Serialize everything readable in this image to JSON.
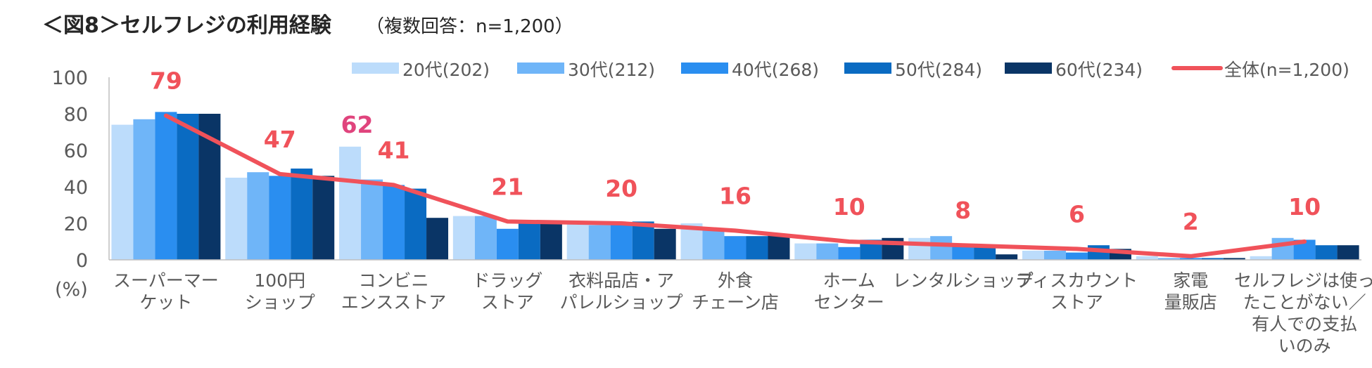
{
  "chart_data": {
    "type": "bar",
    "title": "＜図8＞セルフレジの利用経験",
    "subtitle": "（複数回答：n=1,200）",
    "ylabel": "(%)",
    "ylim": [
      0,
      100
    ],
    "yticks": [
      0,
      20,
      40,
      60,
      80,
      100
    ],
    "categories": [
      [
        "スーパーマー",
        "ケット"
      ],
      [
        "100円",
        "ショップ"
      ],
      [
        "コンビニ",
        "エンスストア"
      ],
      [
        "ドラッグ",
        "ストア"
      ],
      [
        "衣料品店・ア",
        "パレルショップ"
      ],
      [
        "外食",
        "チェーン店"
      ],
      [
        "ホーム",
        "センター"
      ],
      [
        "レンタルショップ"
      ],
      [
        "ディスカウント",
        "ストア"
      ],
      [
        "家電",
        "量販店"
      ],
      [
        "セルフレジは使っ",
        "たことがない／",
        "有人での支払",
        "いのみ"
      ]
    ],
    "series": [
      {
        "name": "20代(202)",
        "color": "#bcdcfb",
        "values": [
          74,
          45,
          62,
          24,
          20,
          20,
          9,
          12,
          5,
          2,
          2
        ]
      },
      {
        "name": "30代(212)",
        "color": "#6fb5f8",
        "values": [
          77,
          48,
          44,
          24,
          19,
          17,
          9,
          13,
          5,
          1,
          12
        ]
      },
      {
        "name": "40代(268)",
        "color": "#2a8ef0",
        "values": [
          81,
          46,
          41,
          17,
          20,
          13,
          7,
          8,
          4,
          1,
          11
        ]
      },
      {
        "name": "50代(284)",
        "color": "#0a6bc2",
        "values": [
          80,
          50,
          39,
          20,
          21,
          13,
          11,
          7,
          8,
          1,
          8
        ]
      },
      {
        "name": "60代(234)",
        "color": "#0a3566",
        "values": [
          80,
          46,
          23,
          21,
          17,
          14,
          12,
          3,
          6,
          1,
          8
        ]
      }
    ],
    "line": {
      "name": "全体(n=1,200)",
      "color": "#f0525a",
      "values": [
        79,
        47,
        41,
        21,
        20,
        16,
        10,
        8,
        6,
        2,
        10
      ],
      "labels": [
        "79",
        "47",
        "41",
        "21",
        "20",
        "16",
        "10",
        "8",
        "6",
        "2",
        "10"
      ]
    },
    "annotation": {
      "text": "62",
      "category_index": 2,
      "series_index": 0,
      "color": "#e0447d"
    }
  }
}
